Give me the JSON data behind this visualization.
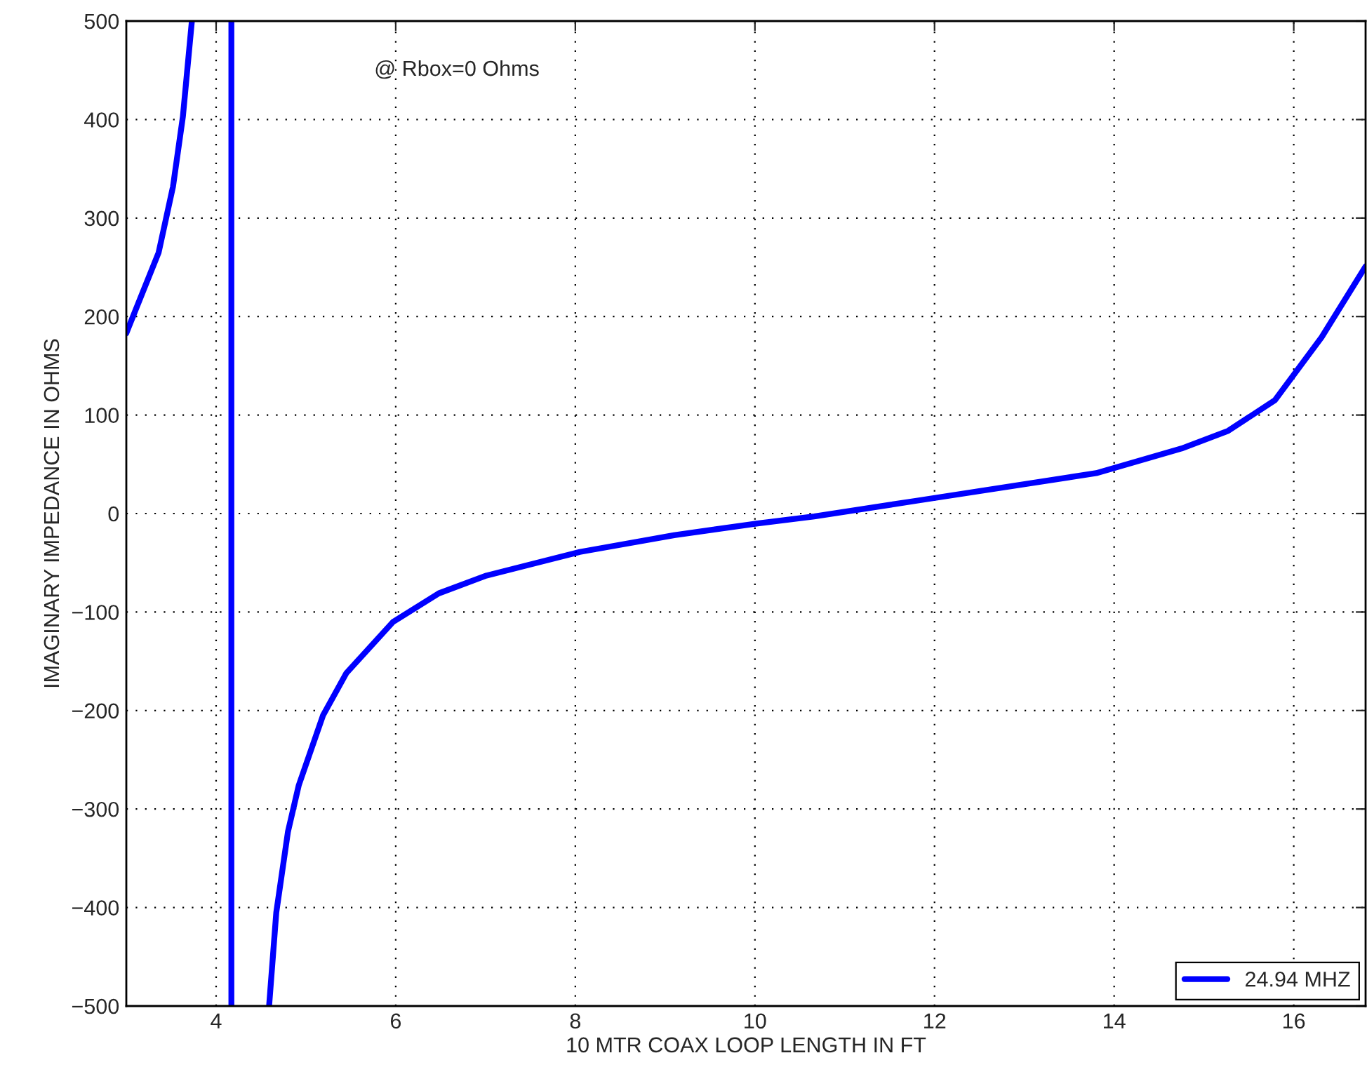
{
  "chart_data": {
    "type": "line",
    "xlabel": "10 MTR COAX LOOP LENGTH IN FT",
    "ylabel": "IMAGINARY IMPEDANCE IN OHMS",
    "annotations": [
      "@ Rbox=0 Ohms"
    ],
    "series": [
      {
        "name": "24.94 MHZ",
        "color": "#0000ff",
        "x": [
          3.0,
          3.03,
          3.36,
          3.52,
          3.63,
          3.73,
          3.95,
          4.17,
          4.17,
          4.4,
          4.59,
          4.67,
          4.8,
          4.92,
          5.19,
          5.45,
          5.97,
          6.48,
          7.01,
          8.05,
          9.1,
          10.03,
          10.66,
          11.8,
          13.8,
          14.75,
          15.27,
          15.79,
          16.31,
          16.8
        ],
        "values": [
          183,
          190,
          265,
          332,
          403,
          500,
          null,
          500,
          -500,
          null,
          -500,
          -405,
          -323,
          -276,
          -205,
          -162,
          -110,
          -81,
          -63,
          -39,
          -22,
          -10,
          -3,
          13,
          41,
          66,
          84,
          115,
          179,
          251
        ]
      }
    ],
    "xlim": [
      3,
      16.8
    ],
    "ylim": [
      -500,
      500
    ],
    "xticks": [
      4,
      6,
      8,
      10,
      12,
      14,
      16
    ],
    "yticks": [
      -500,
      -400,
      -300,
      -200,
      -100,
      0,
      100,
      200,
      300,
      400,
      500
    ],
    "grid": true,
    "legend": "bottom right",
    "line_style": "solid",
    "marker": "none"
  }
}
